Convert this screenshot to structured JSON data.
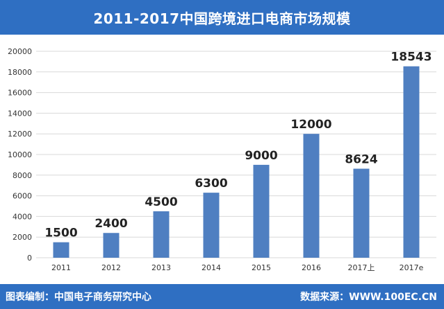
{
  "header": {
    "title": "2011-2017中国跨境进口电商市场规模"
  },
  "footer": {
    "left_text": "图表编制：中国电子商务研究中心",
    "right_text": "数据来源：WWW.100EC.CN"
  },
  "colors": {
    "bar": "#4f7fc1",
    "header_bg": "#2f6fc2",
    "grid": "#d9d9d9"
  },
  "chart_data": {
    "type": "bar",
    "title": "2011-2017中国跨境进口电商市场规模",
    "categories": [
      "2011",
      "2012",
      "2013",
      "2014",
      "2015",
      "2016",
      "2017上",
      "2017e"
    ],
    "values": [
      1500,
      2400,
      4500,
      6300,
      9000,
      12000,
      8624,
      18543
    ],
    "data_labels": [
      "1500",
      "2400",
      "4500",
      "6300",
      "9000",
      "12000",
      "8624",
      "18543"
    ],
    "yticks": [
      "0",
      "2000",
      "4000",
      "6000",
      "8000",
      "10000",
      "12000",
      "14000",
      "16000",
      "18000",
      "20000"
    ],
    "ylim": [
      0,
      20000
    ],
    "xlabel": "",
    "ylabel": "",
    "grid": true,
    "legend": "none"
  }
}
